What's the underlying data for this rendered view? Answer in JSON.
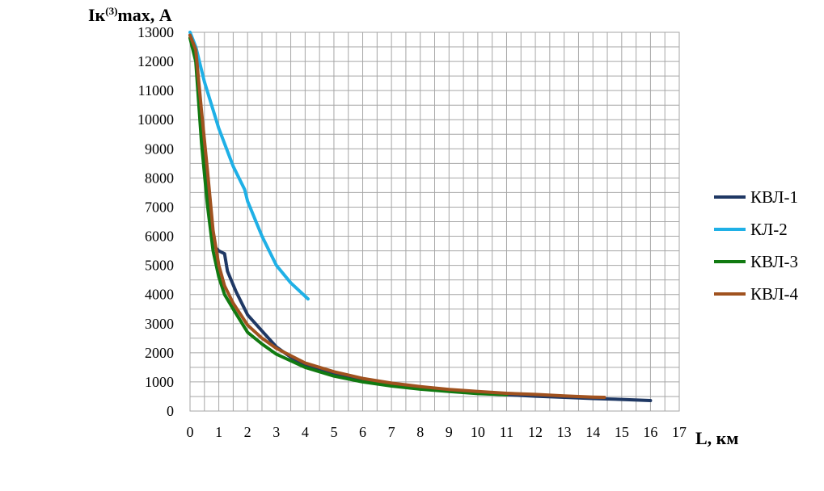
{
  "chart_data": {
    "type": "line",
    "ylabel_main": "Iк",
    "ylabel_sup": "(3)",
    "ylabel_rest": "max, А",
    "xlabel": "L, км",
    "xlim": [
      0,
      17
    ],
    "ylim": [
      0,
      13000
    ],
    "x_ticks": [
      "0",
      "1",
      "2",
      "3",
      "4",
      "5",
      "6",
      "7",
      "8",
      "9",
      "10",
      "11",
      "12",
      "13",
      "14",
      "15",
      "16",
      "17"
    ],
    "y_ticks": [
      "0",
      "1000",
      "2000",
      "3000",
      "4000",
      "5000",
      "6000",
      "7000",
      "8000",
      "9000",
      "10000",
      "11000",
      "12000",
      "13000"
    ],
    "grid": true,
    "legend_position": "right",
    "series": [
      {
        "name": "КВЛ-1",
        "color": "#1f3864",
        "points": [
          [
            0,
            12900
          ],
          [
            0.2,
            12200
          ],
          [
            0.4,
            9600
          ],
          [
            0.6,
            7600
          ],
          [
            0.8,
            5700
          ],
          [
            1.0,
            5500
          ],
          [
            1.2,
            5400
          ],
          [
            1.3,
            4800
          ],
          [
            1.6,
            4100
          ],
          [
            2.0,
            3300
          ],
          [
            2.5,
            2750
          ],
          [
            3.0,
            2200
          ],
          [
            3.5,
            1850
          ],
          [
            4.0,
            1600
          ],
          [
            5.0,
            1250
          ],
          [
            6.0,
            1030
          ],
          [
            7.0,
            880
          ],
          [
            8.0,
            770
          ],
          [
            9.0,
            690
          ],
          [
            10.0,
            610
          ],
          [
            11.0,
            560
          ],
          [
            12.0,
            510
          ],
          [
            13.0,
            470
          ],
          [
            14.0,
            430
          ],
          [
            15.0,
            400
          ],
          [
            16.0,
            360
          ]
        ]
      },
      {
        "name": "КЛ-2",
        "color": "#1fb0e6",
        "points": [
          [
            0,
            13000
          ],
          [
            0.2,
            12500
          ],
          [
            0.5,
            11300
          ],
          [
            1.0,
            9700
          ],
          [
            1.5,
            8400
          ],
          [
            1.9,
            7600
          ],
          [
            2.0,
            7200
          ],
          [
            2.5,
            6000
          ],
          [
            3.0,
            5000
          ],
          [
            3.5,
            4400
          ],
          [
            4.1,
            3850
          ]
        ]
      },
      {
        "name": "КВЛ-3",
        "color": "#117a11",
        "points": [
          [
            0,
            12800
          ],
          [
            0.2,
            12000
          ],
          [
            0.4,
            9200
          ],
          [
            0.6,
            7100
          ],
          [
            0.8,
            5500
          ],
          [
            1.0,
            4600
          ],
          [
            1.2,
            4000
          ],
          [
            1.5,
            3500
          ],
          [
            2.0,
            2700
          ],
          [
            2.5,
            2300
          ],
          [
            3.0,
            1950
          ],
          [
            4.0,
            1500
          ],
          [
            5.0,
            1200
          ],
          [
            6.0,
            1000
          ],
          [
            7.0,
            860
          ],
          [
            8.0,
            750
          ],
          [
            9.0,
            670
          ],
          [
            10.0,
            600
          ],
          [
            11.0,
            560
          ]
        ]
      },
      {
        "name": "КВЛ-4",
        "color": "#a0521f",
        "points": [
          [
            0,
            12900
          ],
          [
            0.2,
            12400
          ],
          [
            0.4,
            10300
          ],
          [
            0.6,
            8300
          ],
          [
            0.8,
            6200
          ],
          [
            1.0,
            5000
          ],
          [
            1.2,
            4300
          ],
          [
            1.5,
            3700
          ],
          [
            2.0,
            2950
          ],
          [
            2.5,
            2500
          ],
          [
            3.0,
            2150
          ],
          [
            4.0,
            1650
          ],
          [
            5.0,
            1350
          ],
          [
            6.0,
            1120
          ],
          [
            7.0,
            960
          ],
          [
            8.0,
            840
          ],
          [
            9.0,
            740
          ],
          [
            10.0,
            670
          ],
          [
            11.0,
            610
          ],
          [
            12.0,
            570
          ],
          [
            13.0,
            520
          ],
          [
            14.0,
            480
          ],
          [
            14.4,
            470
          ]
        ]
      }
    ]
  }
}
